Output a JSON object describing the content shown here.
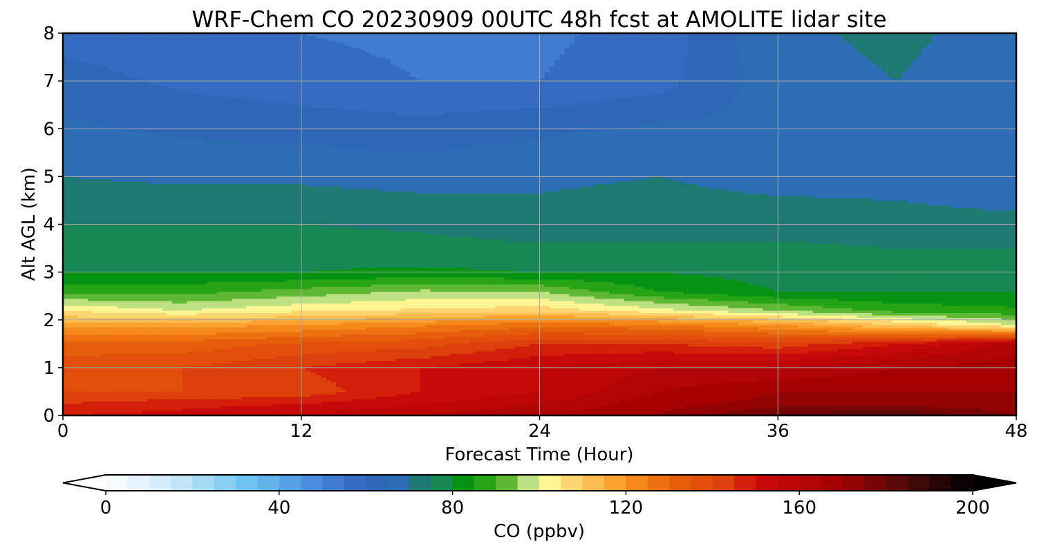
{
  "chart_data": {
    "type": "heatmap",
    "title": "WRF-Chem CO  20230909 00UTC 48h fcst at AMOLITE lidar site",
    "xlabel": "Forecast Time (Hour)",
    "ylabel": "Alt AGL (km)",
    "xlim": [
      0,
      48
    ],
    "ylim": [
      0,
      8
    ],
    "x_ticks": [
      "0",
      "12",
      "24",
      "36",
      "48"
    ],
    "y_ticks": [
      "0",
      "1",
      "2",
      "3",
      "4",
      "5",
      "6",
      "7",
      "8"
    ],
    "grid": true,
    "colorbar": {
      "label": "CO  (ppbv)",
      "min": 0,
      "max": 200,
      "step": 5,
      "extend": "both",
      "ticks": [
        "0",
        "40",
        "80",
        "120",
        "160",
        "200"
      ]
    },
    "field": {
      "x": [
        0,
        6,
        12,
        18,
        24,
        30,
        36,
        42,
        48
      ],
      "y": [
        0,
        0.25,
        0.5,
        1,
        1.5,
        1.9,
        2.2,
        2.6,
        3,
        3.5,
        4,
        5,
        6,
        7,
        8
      ],
      "values": [
        [
          150,
          152,
          155,
          160,
          165,
          170,
          182,
          185,
          175
        ],
        [
          145,
          148,
          150,
          155,
          160,
          168,
          172,
          172,
          172
        ],
        [
          140,
          140,
          142,
          150,
          155,
          165,
          170,
          170,
          170
        ],
        [
          138,
          140,
          145,
          150,
          155,
          160,
          160,
          165,
          168
        ],
        [
          132,
          132,
          136,
          138,
          145,
          145,
          142,
          150,
          162
        ],
        [
          118,
          118,
          120,
          124,
          128,
          126,
          120,
          110,
          100
        ],
        [
          105,
          100,
          104,
          106,
          108,
          102,
          95,
          88,
          86
        ],
        [
          88,
          88,
          92,
          96,
          95,
          85,
          80,
          80,
          80
        ],
        [
          80,
          80,
          80,
          81,
          80,
          80,
          78,
          76,
          76
        ],
        [
          78,
          78,
          78,
          77,
          76,
          76,
          76,
          75,
          75
        ],
        [
          75,
          75,
          75,
          74,
          72,
          73,
          73,
          72,
          72
        ],
        [
          70,
          69,
          69,
          68,
          69,
          70,
          68,
          68,
          65
        ],
        [
          66,
          64,
          63,
          62,
          64,
          66,
          66,
          68,
          68
        ],
        [
          62,
          59,
          57,
          55,
          55,
          58,
          68,
          70,
          67
        ],
        [
          58,
          57,
          55,
          54,
          54,
          57,
          69,
          71,
          68
        ]
      ]
    }
  }
}
